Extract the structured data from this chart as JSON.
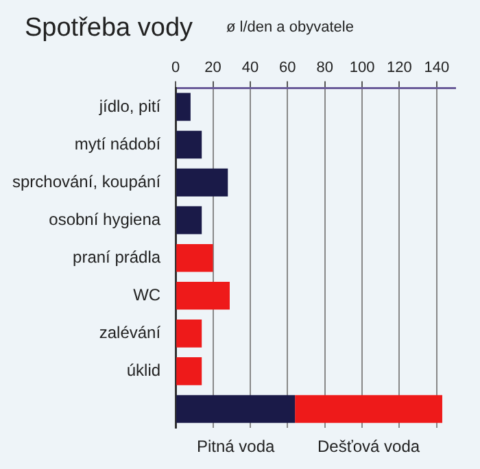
{
  "chart_data": {
    "type": "bar",
    "orientation": "horizontal",
    "stacked": true,
    "title": "Spotřeba vody",
    "subtitle": "ø l/den a obyvatele",
    "categories": [
      "jídlo, pití",
      "mytí nádobí",
      "sprchování, koupání",
      "osobní hygiena",
      "praní prádla",
      "WC",
      "zalévání",
      "úklid",
      null
    ],
    "series": [
      {
        "name": "Pitná voda",
        "color": "#1a1a48",
        "values": [
          8,
          14,
          28,
          14,
          null,
          null,
          null,
          null,
          64
        ]
      },
      {
        "name": "Dešťová voda",
        "color": "#ee1a1a",
        "values": [
          null,
          null,
          null,
          null,
          20,
          29,
          14,
          14,
          79
        ]
      }
    ],
    "xlim": [
      0,
      150
    ],
    "xticks": [
      0,
      20,
      40,
      60,
      80,
      100,
      120,
      140
    ],
    "grid": "x",
    "legend": false
  }
}
